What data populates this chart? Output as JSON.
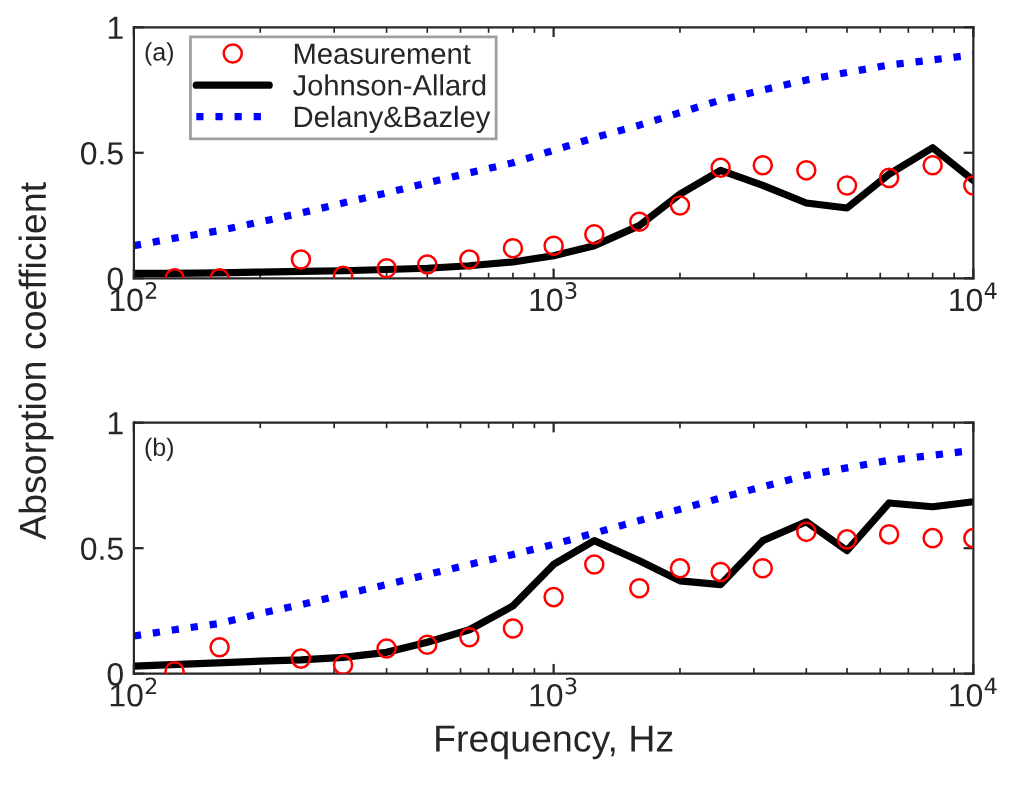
{
  "chart_data": [
    {
      "type": "line",
      "ylabel": "Absorption coefficient",
      "log": "x",
      "xlim": [
        100,
        10000
      ],
      "xticks": [
        {
          "value": 100,
          "label": "10$^{2}$"
        },
        {
          "value": 1000,
          "label": "10$^{3}$"
        },
        {
          "value": 10000,
          "label": "10$^{4}$"
        }
      ],
      "ylim": [
        0,
        1
      ],
      "yticks": [
        0,
        0.5,
        1
      ],
      "grid": false,
      "legend": "top left",
      "annotations": [
        "(a)"
      ],
      "series": [
        {
          "name": "Measurement",
          "type": "scatter",
          "marker": "circle",
          "color": "#ff0000",
          "x": [
            125,
            160,
            250,
            315,
            400,
            500,
            630,
            800,
            1000,
            1250,
            1600,
            2000,
            2500,
            3150,
            4000,
            5000,
            6300,
            8000,
            10000
          ],
          "values": [
            0.0,
            0.0,
            0.075,
            0.01,
            0.04,
            0.055,
            0.075,
            0.12,
            0.13,
            0.175,
            0.225,
            0.29,
            0.44,
            0.45,
            0.43,
            0.37,
            0.4,
            0.45,
            0.37
          ]
        },
        {
          "name": "Johnson-Allard",
          "line_style": "solid",
          "color": "#000000",
          "x": [
            100,
            125,
            160,
            200,
            250,
            315,
            400,
            500,
            630,
            800,
            1000,
            1250,
            1600,
            2000,
            2500,
            3150,
            4000,
            5000,
            6300,
            8000,
            10000
          ],
          "values": [
            0.02,
            0.02,
            0.022,
            0.025,
            0.028,
            0.03,
            0.035,
            0.04,
            0.05,
            0.065,
            0.09,
            0.13,
            0.21,
            0.335,
            0.43,
            0.37,
            0.3,
            0.28,
            0.415,
            0.52,
            0.39
          ]
        },
        {
          "name": "Delany&Bazley",
          "line_style": "dotted",
          "color": "#0000ff",
          "x": [
            100,
            125,
            160,
            200,
            250,
            315,
            400,
            500,
            630,
            800,
            1000,
            1250,
            1600,
            2000,
            2500,
            3150,
            4000,
            5000,
            6300,
            8000,
            10000
          ],
          "values": [
            0.13,
            0.16,
            0.19,
            0.225,
            0.26,
            0.3,
            0.34,
            0.38,
            0.42,
            0.46,
            0.51,
            0.56,
            0.61,
            0.66,
            0.71,
            0.75,
            0.79,
            0.82,
            0.85,
            0.87,
            0.89
          ]
        }
      ]
    },
    {
      "type": "line",
      "xlabel": "Frequency, Hz",
      "log": "x",
      "xlim": [
        100,
        10000
      ],
      "xticks": [
        {
          "value": 100,
          "label": "10$^{2}$"
        },
        {
          "value": 1000,
          "label": "10$^{3}$"
        },
        {
          "value": 10000,
          "label": "10$^{4}$"
        }
      ],
      "ylim": [
        0,
        1
      ],
      "yticks": [
        0,
        0.5,
        1
      ],
      "grid": false,
      "annotations": [
        "(b)"
      ],
      "series": [
        {
          "type": "scatter",
          "marker": "circle",
          "color": "#ff0000",
          "x": [
            125,
            160,
            250,
            315,
            400,
            500,
            630,
            800,
            1000,
            1250,
            1600,
            2000,
            2500,
            3150,
            4000,
            5000,
            6300,
            8000,
            10000
          ],
          "values": [
            0.01,
            0.105,
            0.06,
            0.035,
            0.1,
            0.115,
            0.145,
            0.18,
            0.305,
            0.435,
            0.34,
            0.42,
            0.405,
            0.42,
            0.565,
            0.535,
            0.555,
            0.54,
            0.54
          ]
        },
        {
          "line_style": "solid",
          "color": "#000000",
          "x": [
            100,
            200,
            250,
            315,
            400,
            500,
            630,
            800,
            1000,
            1250,
            1600,
            2000,
            2500,
            3150,
            4000,
            5000,
            6300,
            8000,
            10000
          ],
          "values": [
            0.03,
            0.05,
            0.055,
            0.065,
            0.085,
            0.125,
            0.175,
            0.27,
            0.435,
            0.53,
            0.45,
            0.37,
            0.355,
            0.53,
            0.605,
            0.49,
            0.68,
            0.665,
            0.685
          ]
        },
        {
          "line_style": "dotted",
          "color": "#0000ff",
          "x": [
            100,
            125,
            160,
            200,
            250,
            315,
            400,
            500,
            630,
            800,
            1000,
            1250,
            1600,
            2000,
            2500,
            3150,
            4000,
            5000,
            6300,
            8000,
            10000
          ],
          "values": [
            0.15,
            0.175,
            0.2,
            0.24,
            0.275,
            0.315,
            0.355,
            0.395,
            0.435,
            0.475,
            0.515,
            0.56,
            0.61,
            0.655,
            0.7,
            0.745,
            0.79,
            0.82,
            0.85,
            0.87,
            0.89
          ]
        }
      ]
    }
  ]
}
